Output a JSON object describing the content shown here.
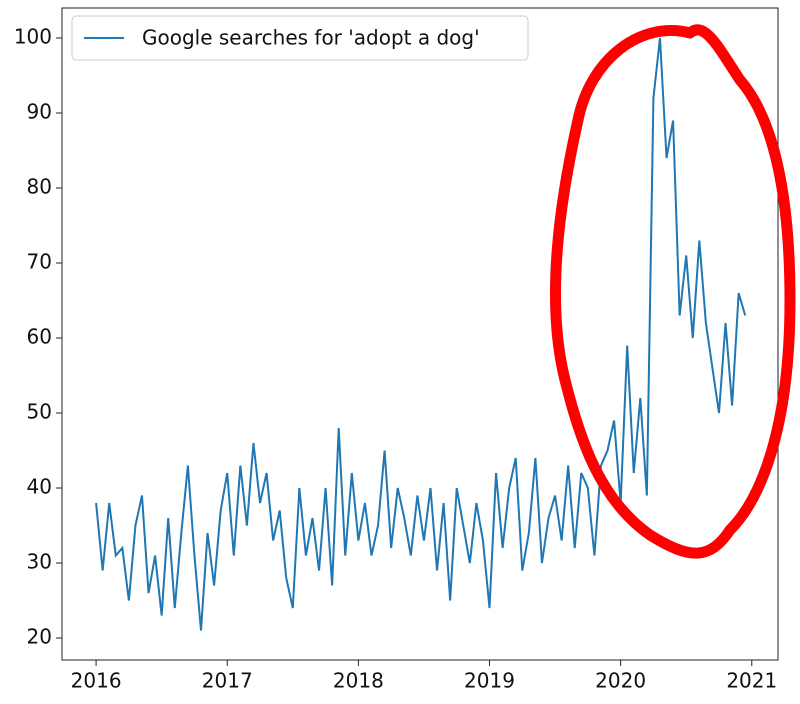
{
  "chart_data": {
    "type": "line",
    "x": [
      2016,
      2016.05,
      2016.1,
      2016.15,
      2016.2,
      2016.25,
      2016.3,
      2016.35,
      2016.4,
      2016.45,
      2016.5,
      2016.55,
      2016.6,
      2016.65,
      2016.7,
      2016.75,
      2016.8,
      2016.85,
      2016.9,
      2016.95,
      2017,
      2017.05,
      2017.1,
      2017.15,
      2017.2,
      2017.25,
      2017.3,
      2017.35,
      2017.4,
      2017.45,
      2017.5,
      2017.55,
      2017.6,
      2017.65,
      2017.7,
      2017.75,
      2017.8,
      2017.85,
      2017.9,
      2017.95,
      2018,
      2018.05,
      2018.1,
      2018.15,
      2018.2,
      2018.25,
      2018.3,
      2018.35,
      2018.4,
      2018.45,
      2018.5,
      2018.55,
      2018.6,
      2018.65,
      2018.7,
      2018.75,
      2018.8,
      2018.85,
      2018.9,
      2018.95,
      2019,
      2019.05,
      2019.1,
      2019.15,
      2019.2,
      2019.25,
      2019.3,
      2019.35,
      2019.4,
      2019.45,
      2019.5,
      2019.55,
      2019.6,
      2019.65,
      2019.7,
      2019.75,
      2019.8,
      2019.85,
      2019.9,
      2019.95,
      2020,
      2020.05,
      2020.1,
      2020.15,
      2020.2,
      2020.25,
      2020.3,
      2020.35,
      2020.4,
      2020.45,
      2020.5,
      2020.55,
      2020.6,
      2020.65,
      2020.7,
      2020.75,
      2020.8,
      2020.85,
      2020.9,
      2020.95
    ],
    "series": [
      {
        "name": "Google searches for 'adopt a dog'",
        "color": "#1f77b4",
        "values": [
          38,
          29,
          38,
          31,
          32,
          25,
          35,
          39,
          26,
          31,
          23,
          36,
          24,
          34,
          43,
          31,
          21,
          34,
          27,
          37,
          42,
          31,
          43,
          35,
          46,
          38,
          42,
          33,
          37,
          28,
          24,
          40,
          31,
          36,
          29,
          40,
          27,
          48,
          31,
          42,
          33,
          38,
          31,
          35,
          45,
          32,
          40,
          36,
          31,
          39,
          33,
          40,
          29,
          38,
          25,
          40,
          35,
          30,
          38,
          33,
          24,
          42,
          32,
          40,
          44,
          29,
          34,
          44,
          30,
          36,
          39,
          33,
          43,
          32,
          42,
          40,
          31,
          43,
          45,
          49,
          38,
          59,
          42,
          52,
          39,
          92,
          100,
          84,
          89,
          63,
          71,
          60,
          73,
          62,
          56,
          50,
          62,
          51,
          66,
          63
        ]
      }
    ],
    "xlim": [
      2015.74,
      2021.2
    ],
    "ylim": [
      17.07,
      104
    ],
    "xticks": [
      2016,
      2017,
      2018,
      2019,
      2020,
      2021
    ],
    "yticks": [
      20,
      30,
      40,
      50,
      60,
      70,
      80,
      90,
      100
    ],
    "legend": "upper left"
  }
}
